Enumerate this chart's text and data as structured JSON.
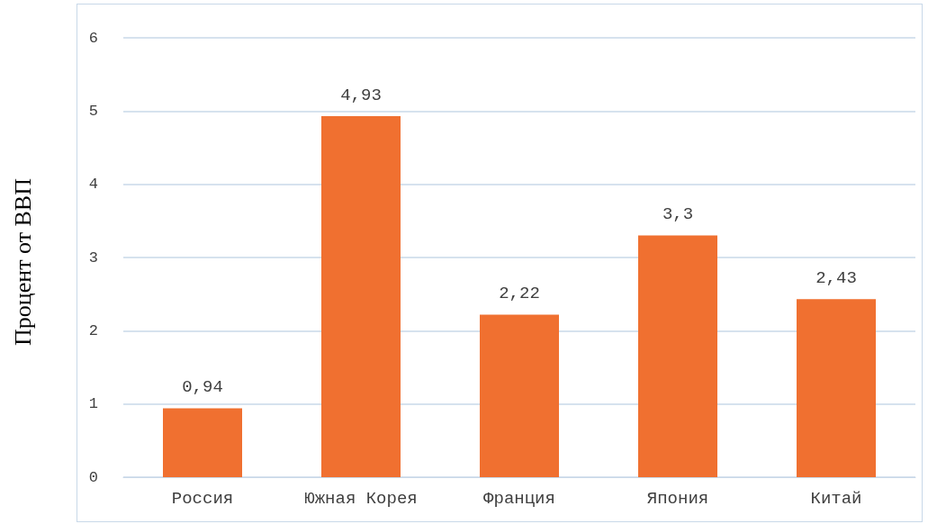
{
  "chart_data": {
    "type": "bar",
    "ylabel": "Процент от ВВП",
    "categories": [
      "Россия",
      "Южная Корея",
      "Франция",
      "Япония",
      "Китай"
    ],
    "values": [
      0.94,
      4.93,
      2.22,
      3.3,
      2.43
    ],
    "value_labels": [
      "0,94",
      "4,93",
      "2,22",
      "3,3",
      "2,43"
    ],
    "color": "#f07030",
    "ylim": [
      0,
      6
    ],
    "yticks": [
      0,
      1,
      2,
      3,
      4,
      5,
      6
    ],
    "grid": "y"
  }
}
